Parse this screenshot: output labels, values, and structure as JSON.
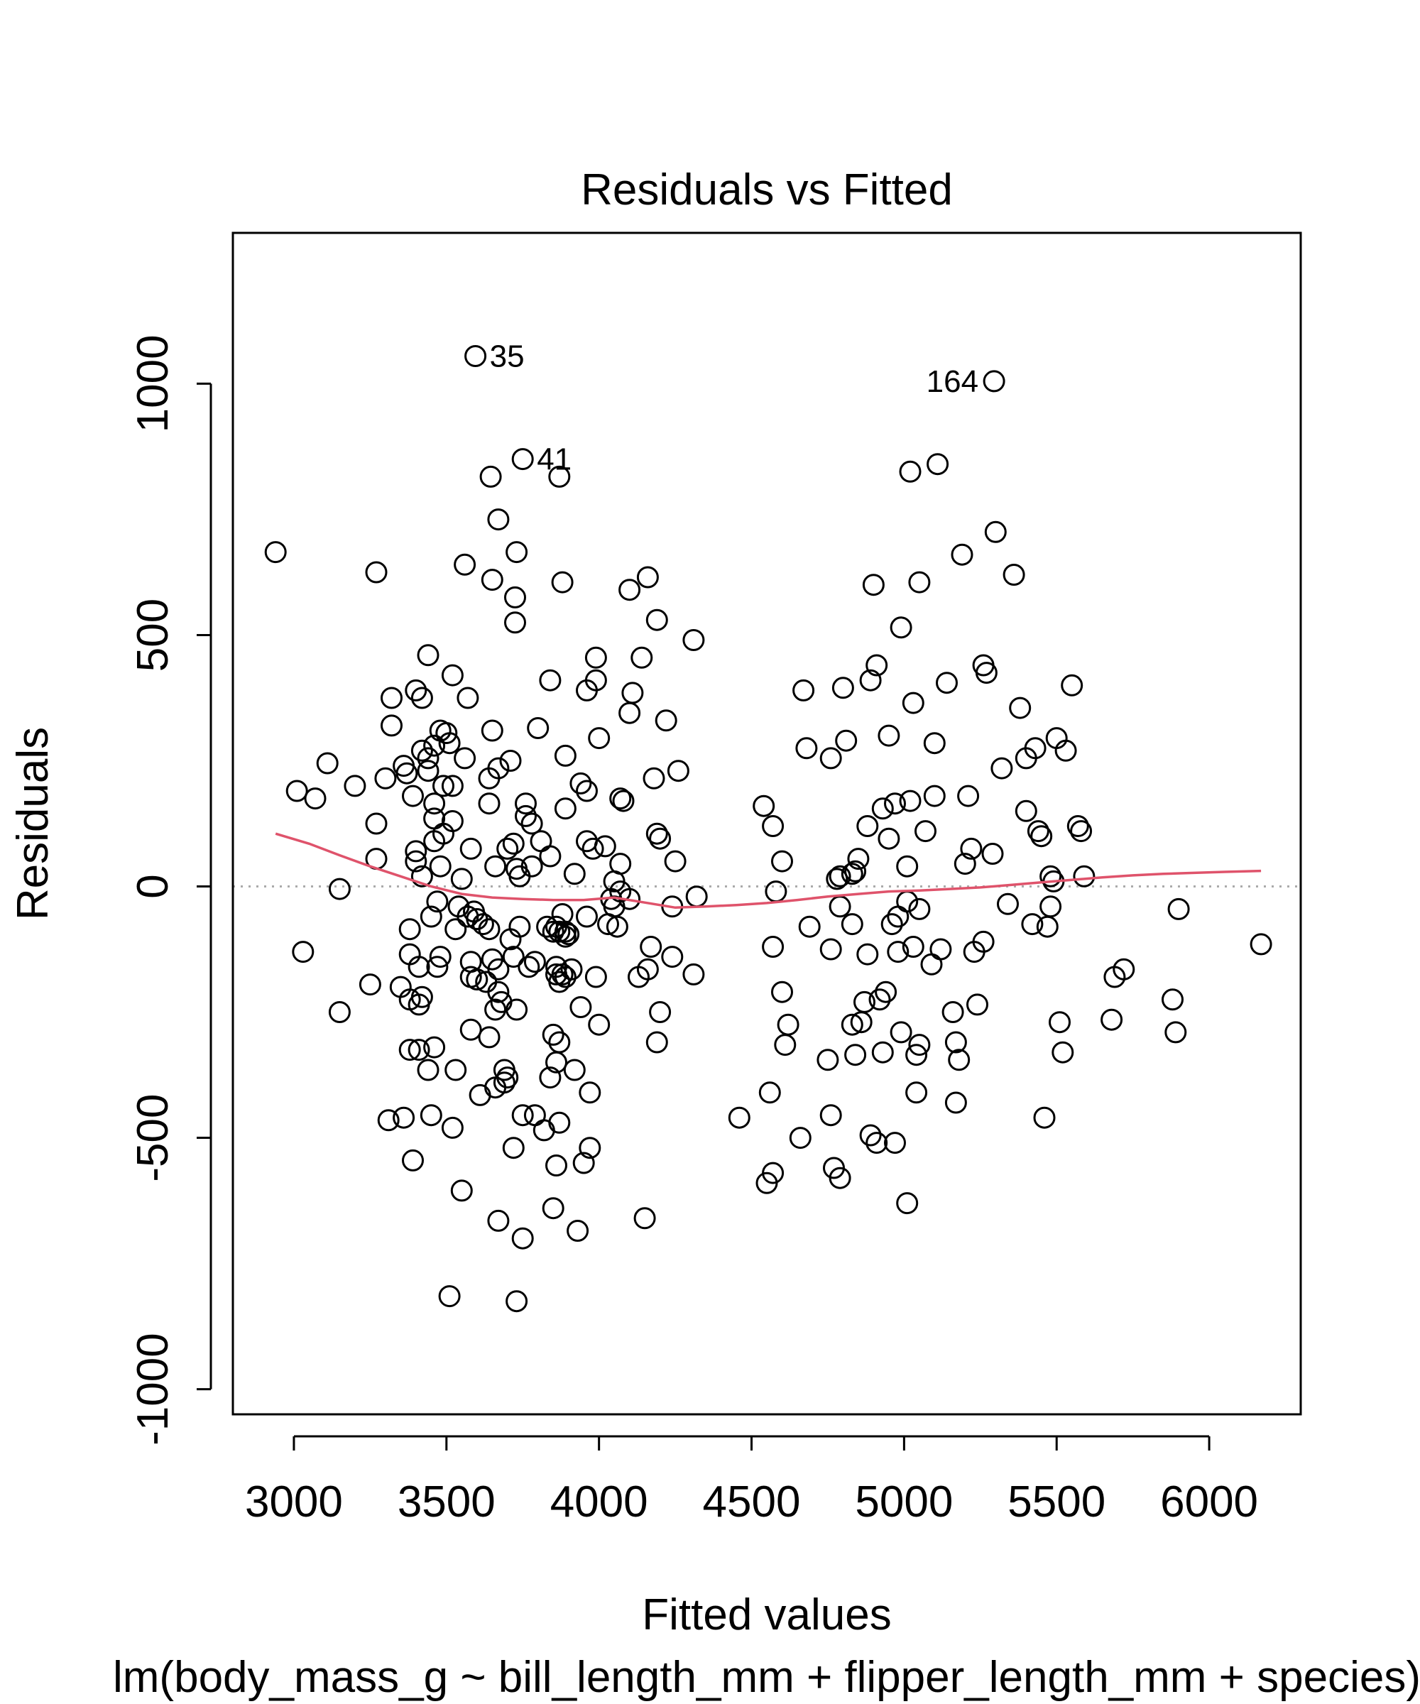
{
  "chart_data": {
    "type": "scatter",
    "title": "Residuals vs Fitted",
    "xlabel": "Fitted values",
    "ylabel": "Residuals",
    "subtitle": "lm(body_mass_g ~ bill_length_mm + flipper_length_mm + species)",
    "xlim": [
      2800,
      6300
    ],
    "ylim": [
      -1050,
      1300
    ],
    "xticks": [
      3000,
      3500,
      4000,
      4500,
      5000,
      5500,
      6000
    ],
    "yticks": [
      -1000,
      -500,
      0,
      500,
      1000
    ],
    "xtick_labels": [
      "3000",
      "3500",
      "4000",
      "4500",
      "5000",
      "5500",
      "6000"
    ],
    "ytick_labels": [
      "-1000",
      "-500",
      "0",
      "500",
      "1000"
    ],
    "grid": false,
    "reference_line": {
      "y": 0,
      "style": "dotted",
      "color": "#aaaaaa"
    },
    "smooth_color": "#df536b",
    "point_color": "#000000",
    "annotations": [
      {
        "label": "35",
        "x": 3595,
        "y": 1055
      },
      {
        "label": "41",
        "x": 3750,
        "y": 850
      },
      {
        "label": "164",
        "x": 5295,
        "y": 1005
      }
    ],
    "points": [
      [
        2940,
        665
      ],
      [
        3010,
        190
      ],
      [
        3030,
        -130
      ],
      [
        3070,
        175
      ],
      [
        3110,
        245
      ],
      [
        3150,
        -250
      ],
      [
        3150,
        -5
      ],
      [
        3200,
        200
      ],
      [
        3250,
        -195
      ],
      [
        3270,
        55
      ],
      [
        3270,
        125
      ],
      [
        3270,
        625
      ],
      [
        3300,
        215
      ],
      [
        3310,
        -465
      ],
      [
        3320,
        375
      ],
      [
        3320,
        320
      ],
      [
        3350,
        -200
      ],
      [
        3360,
        -460
      ],
      [
        3360,
        240
      ],
      [
        3370,
        225
      ],
      [
        3380,
        -85
      ],
      [
        3380,
        -135
      ],
      [
        3380,
        -225
      ],
      [
        3380,
        -325
      ],
      [
        3390,
        -545
      ],
      [
        3390,
        180
      ],
      [
        3400,
        50
      ],
      [
        3400,
        70
      ],
      [
        3400,
        390
      ],
      [
        3410,
        -160
      ],
      [
        3410,
        -235
      ],
      [
        3410,
        -325
      ],
      [
        3420,
        20
      ],
      [
        3420,
        375
      ],
      [
        3420,
        270
      ],
      [
        3420,
        -220
      ],
      [
        3440,
        -365
      ],
      [
        3440,
        230
      ],
      [
        3440,
        460
      ],
      [
        3440,
        255
      ],
      [
        3450,
        -60
      ],
      [
        3450,
        -455
      ],
      [
        3460,
        90
      ],
      [
        3460,
        135
      ],
      [
        3460,
        165
      ],
      [
        3460,
        -320
      ],
      [
        3460,
        280
      ],
      [
        3470,
        -160
      ],
      [
        3470,
        -30
      ],
      [
        3480,
        -140
      ],
      [
        3480,
        40
      ],
      [
        3480,
        310
      ],
      [
        3490,
        105
      ],
      [
        3490,
        200
      ],
      [
        3500,
        305
      ],
      [
        3510,
        -815
      ],
      [
        3510,
        285
      ],
      [
        3520,
        -480
      ],
      [
        3520,
        130
      ],
      [
        3520,
        200
      ],
      [
        3520,
        420
      ],
      [
        3530,
        -85
      ],
      [
        3530,
        -365
      ],
      [
        3540,
        -40
      ],
      [
        3550,
        -605
      ],
      [
        3550,
        15
      ],
      [
        3560,
        255
      ],
      [
        3560,
        640
      ],
      [
        3570,
        -60
      ],
      [
        3570,
        375
      ],
      [
        3580,
        -150
      ],
      [
        3580,
        -180
      ],
      [
        3580,
        -285
      ],
      [
        3580,
        75
      ],
      [
        3590,
        -50
      ],
      [
        3595,
        1055
      ],
      [
        3600,
        -185
      ],
      [
        3600,
        -65
      ],
      [
        3610,
        -415
      ],
      [
        3620,
        -75
      ],
      [
        3630,
        -190
      ],
      [
        3640,
        -85
      ],
      [
        3640,
        215
      ],
      [
        3640,
        165
      ],
      [
        3640,
        -300
      ],
      [
        3645,
        815
      ],
      [
        3650,
        -145
      ],
      [
        3650,
        610
      ],
      [
        3650,
        310
      ],
      [
        3660,
        -245
      ],
      [
        3660,
        -400
      ],
      [
        3660,
        40
      ],
      [
        3670,
        -165
      ],
      [
        3670,
        -210
      ],
      [
        3670,
        235
      ],
      [
        3670,
        -665
      ],
      [
        3670,
        730
      ],
      [
        3680,
        -230
      ],
      [
        3690,
        -365
      ],
      [
        3690,
        -390
      ],
      [
        3700,
        -380
      ],
      [
        3700,
        75
      ],
      [
        3710,
        250
      ],
      [
        3710,
        -105
      ],
      [
        3720,
        -520
      ],
      [
        3720,
        85
      ],
      [
        3720,
        -140
      ],
      [
        3725,
        575
      ],
      [
        3725,
        525
      ],
      [
        3730,
        -825
      ],
      [
        3730,
        -245
      ],
      [
        3730,
        665
      ],
      [
        3730,
        35
      ],
      [
        3740,
        -80
      ],
      [
        3740,
        20
      ],
      [
        3750,
        850
      ],
      [
        3750,
        -455
      ],
      [
        3750,
        -700
      ],
      [
        3760,
        165
      ],
      [
        3760,
        140
      ],
      [
        3770,
        -160
      ],
      [
        3780,
        40
      ],
      [
        3780,
        125
      ],
      [
        3790,
        -455
      ],
      [
        3790,
        -150
      ],
      [
        3800,
        315
      ],
      [
        3810,
        90
      ],
      [
        3820,
        -485
      ],
      [
        3830,
        -80
      ],
      [
        3840,
        -380
      ],
      [
        3840,
        60
      ],
      [
        3840,
        410
      ],
      [
        3850,
        -640
      ],
      [
        3850,
        -295
      ],
      [
        3850,
        -90
      ],
      [
        3860,
        -555
      ],
      [
        3860,
        -350
      ],
      [
        3860,
        -175
      ],
      [
        3860,
        -160
      ],
      [
        3860,
        -80
      ],
      [
        3870,
        815
      ],
      [
        3870,
        -470
      ],
      [
        3870,
        -310
      ],
      [
        3870,
        -90
      ],
      [
        3870,
        -190
      ],
      [
        3880,
        -175
      ],
      [
        3880,
        -55
      ],
      [
        3880,
        605
      ],
      [
        3890,
        -90
      ],
      [
        3890,
        -100
      ],
      [
        3890,
        260
      ],
      [
        3890,
        -180
      ],
      [
        3890,
        155
      ],
      [
        3900,
        -95
      ],
      [
        3910,
        -165
      ],
      [
        3920,
        -365
      ],
      [
        3920,
        25
      ],
      [
        3930,
        -685
      ],
      [
        3940,
        -240
      ],
      [
        3940,
        205
      ],
      [
        3950,
        -550
      ],
      [
        3960,
        -60
      ],
      [
        3960,
        90
      ],
      [
        3960,
        390
      ],
      [
        3960,
        190
      ],
      [
        3970,
        -410
      ],
      [
        3970,
        -520
      ],
      [
        3980,
        75
      ],
      [
        3990,
        -180
      ],
      [
        3990,
        410
      ],
      [
        3990,
        455
      ],
      [
        4000,
        -275
      ],
      [
        4000,
        295
      ],
      [
        4020,
        80
      ],
      [
        4030,
        -75
      ],
      [
        4040,
        -25
      ],
      [
        4050,
        10
      ],
      [
        4050,
        -40
      ],
      [
        4060,
        -80
      ],
      [
        4070,
        45
      ],
      [
        4070,
        -10
      ],
      [
        4070,
        175
      ],
      [
        4080,
        170
      ],
      [
        4100,
        345
      ],
      [
        4100,
        -25
      ],
      [
        4100,
        590
      ],
      [
        4110,
        385
      ],
      [
        4130,
        -180
      ],
      [
        4140,
        455
      ],
      [
        4150,
        -660
      ],
      [
        4160,
        615
      ],
      [
        4160,
        -165
      ],
      [
        4170,
        -120
      ],
      [
        4180,
        215
      ],
      [
        4190,
        105
      ],
      [
        4190,
        -310
      ],
      [
        4190,
        530
      ],
      [
        4200,
        -250
      ],
      [
        4200,
        95
      ],
      [
        4220,
        330
      ],
      [
        4240,
        -140
      ],
      [
        4240,
        -40
      ],
      [
        4250,
        50
      ],
      [
        4260,
        230
      ],
      [
        4310,
        490
      ],
      [
        4310,
        -175
      ],
      [
        4320,
        -20
      ],
      [
        4460,
        -460
      ],
      [
        4540,
        160
      ],
      [
        4550,
        -590
      ],
      [
        4560,
        -410
      ],
      [
        4570,
        -570
      ],
      [
        4570,
        -120
      ],
      [
        4570,
        120
      ],
      [
        4580,
        -10
      ],
      [
        4600,
        -210
      ],
      [
        4600,
        50
      ],
      [
        4610,
        -315
      ],
      [
        4620,
        -275
      ],
      [
        4660,
        -500
      ],
      [
        4670,
        390
      ],
      [
        4680,
        275
      ],
      [
        4690,
        -80
      ],
      [
        4750,
        -345
      ],
      [
        4760,
        -455
      ],
      [
        4760,
        -125
      ],
      [
        4760,
        255
      ],
      [
        4770,
        -560
      ],
      [
        4780,
        15
      ],
      [
        4790,
        -40
      ],
      [
        4790,
        20
      ],
      [
        4790,
        -580
      ],
      [
        4800,
        395
      ],
      [
        4810,
        290
      ],
      [
        4830,
        -275
      ],
      [
        4830,
        -75
      ],
      [
        4830,
        25
      ],
      [
        4840,
        -335
      ],
      [
        4840,
        30
      ],
      [
        4850,
        55
      ],
      [
        4860,
        -270
      ],
      [
        4870,
        -230
      ],
      [
        4880,
        120
      ],
      [
        4880,
        -135
      ],
      [
        4890,
        -495
      ],
      [
        4890,
        410
      ],
      [
        4900,
        600
      ],
      [
        4910,
        440
      ],
      [
        4910,
        -510
      ],
      [
        4920,
        -225
      ],
      [
        4930,
        -330
      ],
      [
        4930,
        155
      ],
      [
        4940,
        -210
      ],
      [
        4950,
        300
      ],
      [
        4950,
        95
      ],
      [
        4960,
        -75
      ],
      [
        4970,
        -510
      ],
      [
        4970,
        165
      ],
      [
        4980,
        -130
      ],
      [
        4980,
        -60
      ],
      [
        4990,
        -290
      ],
      [
        4990,
        515
      ],
      [
        5010,
        -630
      ],
      [
        5010,
        -30
      ],
      [
        5010,
        40
      ],
      [
        5020,
        170
      ],
      [
        5020,
        825
      ],
      [
        5030,
        -120
      ],
      [
        5030,
        365
      ],
      [
        5040,
        -410
      ],
      [
        5040,
        -335
      ],
      [
        5050,
        -45
      ],
      [
        5050,
        -315
      ],
      [
        5050,
        605
      ],
      [
        5070,
        110
      ],
      [
        5090,
        -155
      ],
      [
        5100,
        180
      ],
      [
        5100,
        285
      ],
      [
        5110,
        840
      ],
      [
        5120,
        -125
      ],
      [
        5140,
        405
      ],
      [
        5160,
        -250
      ],
      [
        5170,
        -310
      ],
      [
        5170,
        -430
      ],
      [
        5180,
        -345
      ],
      [
        5190,
        660
      ],
      [
        5200,
        45
      ],
      [
        5210,
        180
      ],
      [
        5220,
        75
      ],
      [
        5230,
        -130
      ],
      [
        5240,
        -235
      ],
      [
        5260,
        440
      ],
      [
        5260,
        -110
      ],
      [
        5270,
        425
      ],
      [
        5290,
        65
      ],
      [
        5295,
        1005
      ],
      [
        5300,
        705
      ],
      [
        5320,
        235
      ],
      [
        5340,
        -35
      ],
      [
        5360,
        620
      ],
      [
        5380,
        355
      ],
      [
        5400,
        150
      ],
      [
        5400,
        255
      ],
      [
        5420,
        -75
      ],
      [
        5430,
        275
      ],
      [
        5440,
        110
      ],
      [
        5450,
        100
      ],
      [
        5460,
        -460
      ],
      [
        5470,
        -80
      ],
      [
        5480,
        20
      ],
      [
        5480,
        -40
      ],
      [
        5490,
        10
      ],
      [
        5500,
        295
      ],
      [
        5510,
        -270
      ],
      [
        5520,
        -330
      ],
      [
        5530,
        270
      ],
      [
        5550,
        400
      ],
      [
        5570,
        120
      ],
      [
        5580,
        110
      ],
      [
        5590,
        20
      ],
      [
        5680,
        -265
      ],
      [
        5690,
        -180
      ],
      [
        5720,
        -165
      ],
      [
        5880,
        -225
      ],
      [
        5890,
        -290
      ],
      [
        5900,
        -45
      ],
      [
        6170,
        -115
      ]
    ],
    "smooth": [
      [
        2940,
        105
      ],
      [
        3050,
        85
      ],
      [
        3150,
        62
      ],
      [
        3250,
        40
      ],
      [
        3350,
        20
      ],
      [
        3450,
        0
      ],
      [
        3550,
        -15
      ],
      [
        3650,
        -22
      ],
      [
        3750,
        -25
      ],
      [
        3850,
        -27
      ],
      [
        3950,
        -27
      ],
      [
        4050,
        -22
      ],
      [
        4150,
        -32
      ],
      [
        4250,
        -42
      ],
      [
        4350,
        -40
      ],
      [
        4450,
        -37
      ],
      [
        4550,
        -33
      ],
      [
        4650,
        -27
      ],
      [
        4750,
        -20
      ],
      [
        4850,
        -15
      ],
      [
        4950,
        -10
      ],
      [
        5050,
        -8
      ],
      [
        5150,
        -5
      ],
      [
        5250,
        -2
      ],
      [
        5350,
        3
      ],
      [
        5450,
        8
      ],
      [
        5550,
        13
      ],
      [
        5650,
        18
      ],
      [
        5750,
        22
      ],
      [
        5850,
        25
      ],
      [
        5950,
        27
      ],
      [
        6050,
        29
      ],
      [
        6170,
        31
      ]
    ]
  }
}
